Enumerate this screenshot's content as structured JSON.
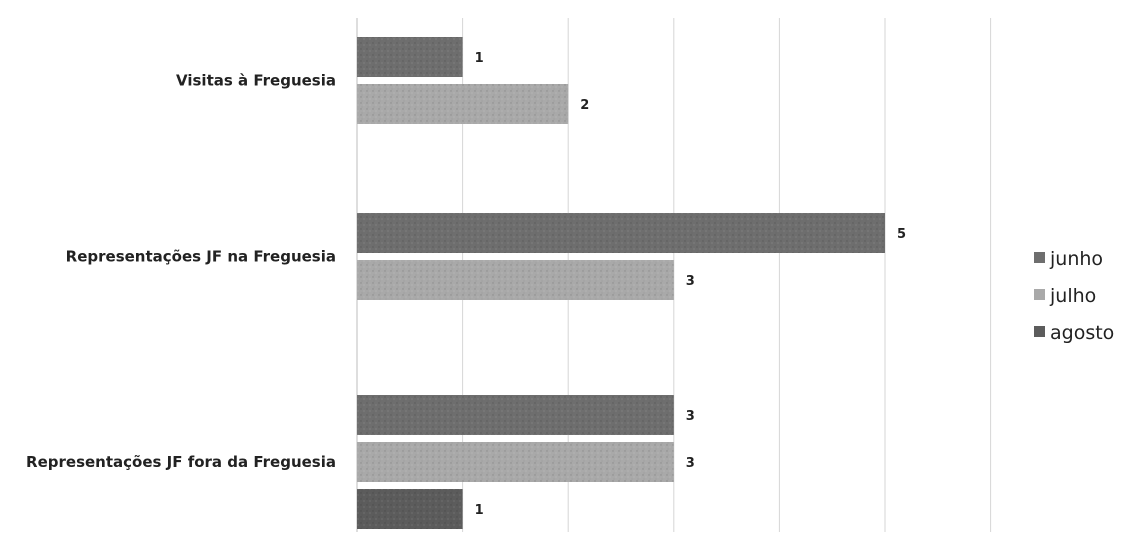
{
  "chart_data": {
    "type": "bar",
    "orientation": "horizontal",
    "categories": [
      "Visitas à Freguesia",
      "Representações JF na Freguesia",
      "Representações JF fora da Freguesia"
    ],
    "series": [
      {
        "name": "junho",
        "color": "#6e6e6e",
        "values": [
          1,
          5,
          3
        ]
      },
      {
        "name": "julho",
        "color": "#a9a9a9",
        "values": [
          2,
          3,
          3
        ]
      },
      {
        "name": "agosto",
        "color": "#5c5c5c",
        "values": [
          null,
          null,
          1
        ]
      }
    ],
    "xlim": [
      0,
      6
    ],
    "grid": true,
    "legend": "right",
    "title": "",
    "xlabel": "",
    "ylabel": ""
  }
}
